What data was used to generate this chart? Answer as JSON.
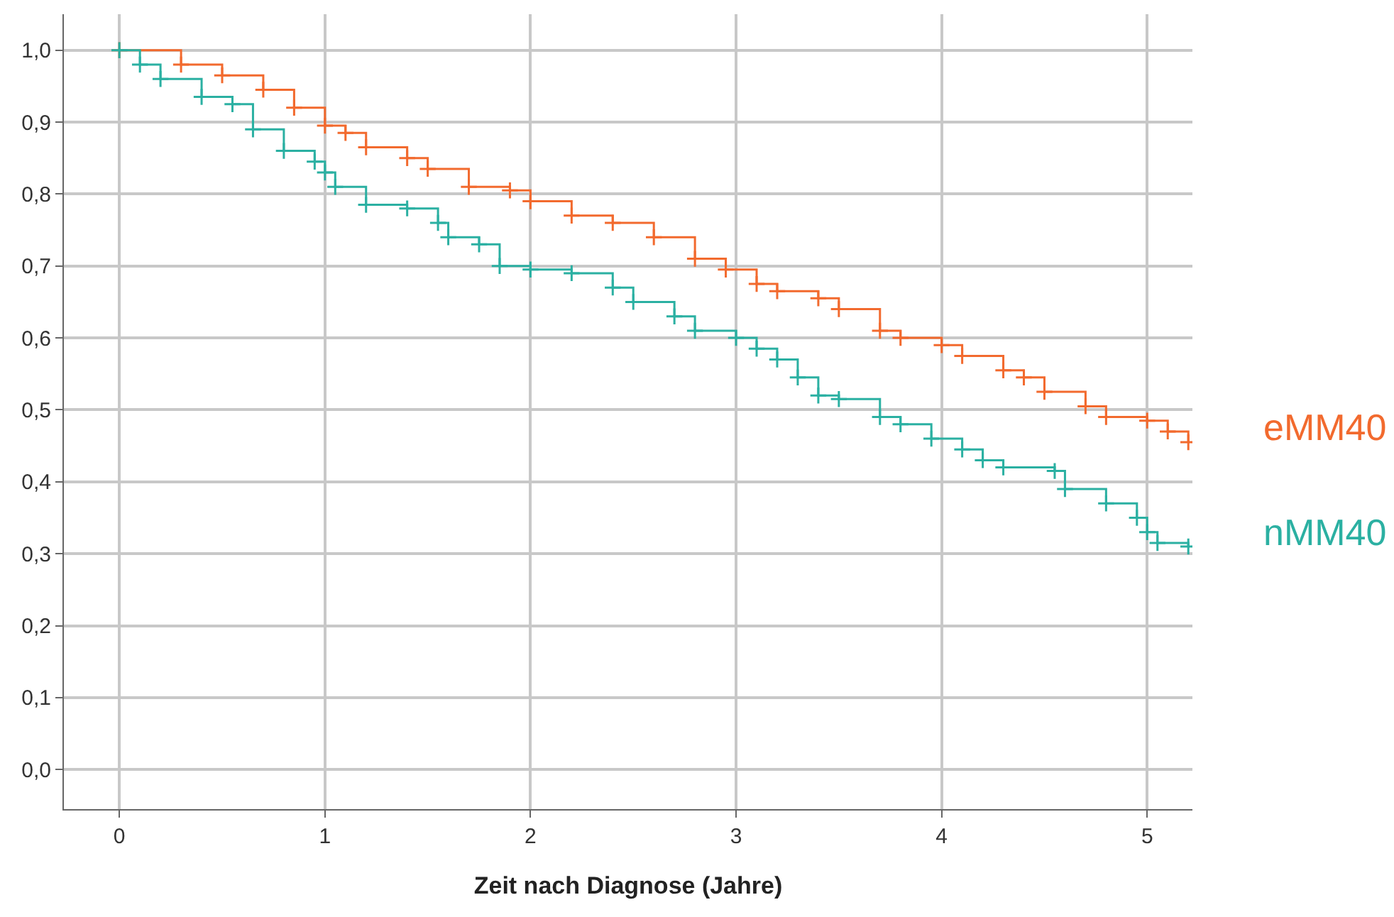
{
  "chart_data": {
    "type": "step",
    "xlabel": "Zeit nach Diagnose (Jahre)",
    "xlim": [
      -0.27,
      5.22
    ],
    "ylim": [
      -0.055,
      1.05
    ],
    "xticks": [
      0,
      1,
      2,
      3,
      4,
      5
    ],
    "yticks": [
      {
        "value": 0,
        "label": "0,0"
      },
      {
        "value": 0.1,
        "label": "0,1"
      },
      {
        "value": 0.2,
        "label": "0,2"
      },
      {
        "value": 0.3,
        "label": "0,3"
      },
      {
        "value": 0.4,
        "label": "0,4"
      },
      {
        "value": 0.5,
        "label": "0,5"
      },
      {
        "value": 0.6,
        "label": "0,6"
      },
      {
        "value": 0.7,
        "label": "0,7"
      },
      {
        "value": 0.8,
        "label": "0,8"
      },
      {
        "value": 0.9,
        "label": "0,9"
      },
      {
        "value": 1.0,
        "label": "1,0"
      }
    ],
    "grid": true,
    "legend": false,
    "marker": "cross",
    "line_style": "solid",
    "series": [
      {
        "name": "eMM40",
        "color": "#f26a2e",
        "x": [
          0,
          0.3,
          0.5,
          0.7,
          0.85,
          1.0,
          1.1,
          1.2,
          1.4,
          1.5,
          1.7,
          1.9,
          2.0,
          2.2,
          2.4,
          2.6,
          2.8,
          2.95,
          3.1,
          3.2,
          3.4,
          3.5,
          3.7,
          3.8,
          4.0,
          4.1,
          4.3,
          4.4,
          4.5,
          4.7,
          4.8,
          5.0,
          5.1,
          5.2
        ],
        "values": [
          1.0,
          0.98,
          0.965,
          0.945,
          0.92,
          0.895,
          0.885,
          0.865,
          0.85,
          0.835,
          0.81,
          0.805,
          0.79,
          0.77,
          0.76,
          0.74,
          0.71,
          0.695,
          0.675,
          0.665,
          0.655,
          0.64,
          0.61,
          0.6,
          0.59,
          0.575,
          0.555,
          0.545,
          0.525,
          0.505,
          0.49,
          0.485,
          0.47,
          0.455
        ]
      },
      {
        "name": "nMM40",
        "color": "#2bb0a2",
        "x": [
          0,
          0.1,
          0.2,
          0.4,
          0.55,
          0.65,
          0.8,
          0.95,
          1.0,
          1.05,
          1.2,
          1.4,
          1.55,
          1.6,
          1.75,
          1.85,
          2.0,
          2.2,
          2.4,
          2.5,
          2.7,
          2.8,
          3.0,
          3.1,
          3.2,
          3.3,
          3.4,
          3.5,
          3.7,
          3.8,
          3.95,
          4.1,
          4.2,
          4.3,
          4.55,
          4.6,
          4.8,
          4.95,
          5.0,
          5.05,
          5.2
        ],
        "values": [
          1.0,
          0.98,
          0.96,
          0.935,
          0.925,
          0.89,
          0.86,
          0.845,
          0.83,
          0.81,
          0.785,
          0.78,
          0.76,
          0.74,
          0.73,
          0.7,
          0.695,
          0.69,
          0.67,
          0.65,
          0.63,
          0.61,
          0.6,
          0.585,
          0.57,
          0.545,
          0.52,
          0.515,
          0.49,
          0.48,
          0.46,
          0.445,
          0.43,
          0.42,
          0.415,
          0.39,
          0.37,
          0.35,
          0.33,
          0.315,
          0.31
        ]
      }
    ]
  }
}
